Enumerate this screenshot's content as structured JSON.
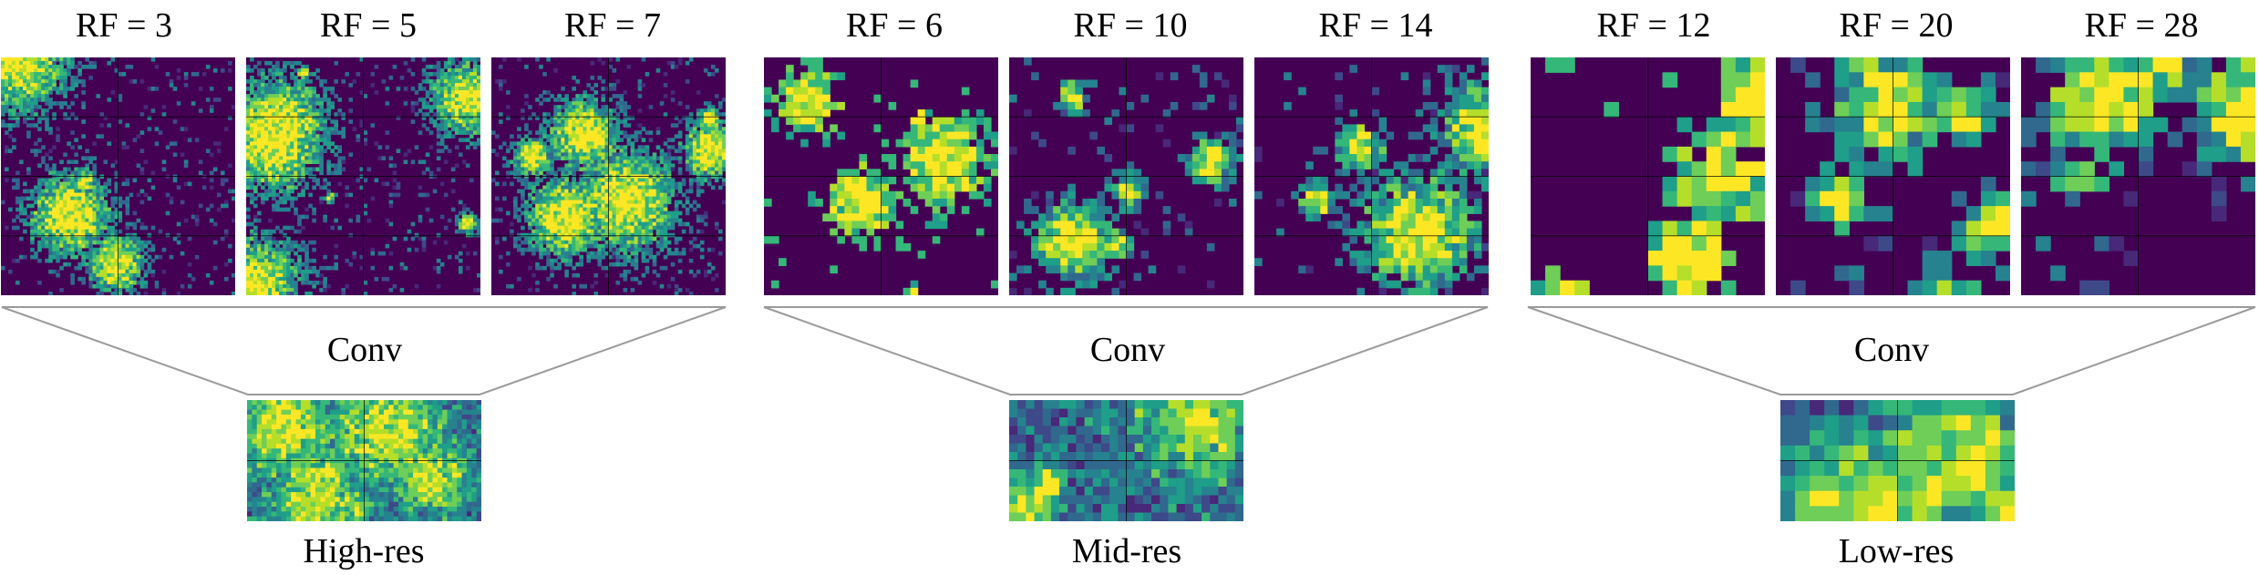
{
  "groups": [
    {
      "id": "high",
      "rf_labels": [
        "RF = 3",
        "RF = 5",
        "RF = 7"
      ],
      "conv_label": "Conv",
      "res_label": "High-res"
    },
    {
      "id": "mid",
      "rf_labels": [
        "RF = 6",
        "RF = 10",
        "RF = 14"
      ],
      "conv_label": "Conv",
      "res_label": "Mid-res"
    },
    {
      "id": "low",
      "rf_labels": [
        "RF = 12",
        "RF = 20",
        "RF = 28"
      ],
      "conv_label": "Conv",
      "res_label": "Low-res"
    }
  ],
  "colors": {
    "background": "#440154",
    "colormap": [
      "#440154",
      "#482878",
      "#3e4989",
      "#31688e",
      "#26828e",
      "#1f9e89",
      "#35b779",
      "#6ece58",
      "#b5de2b",
      "#fde725"
    ],
    "grid_line": "#000000",
    "funnel_line": "#9a9a9a"
  }
}
